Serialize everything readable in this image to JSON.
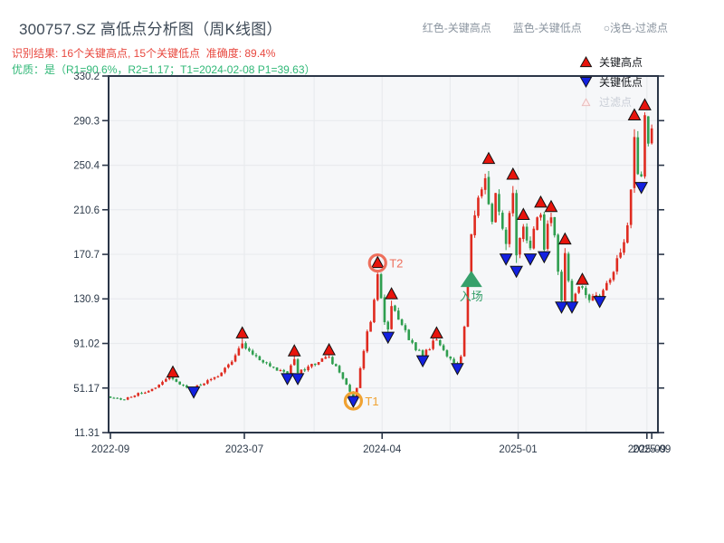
{
  "header": {
    "title": "300757.SZ 高低点分析图（周K线图）",
    "subtitle_result": "识别结果: 16个关键高点, 15个关键低点  准确度: 89.4%",
    "subtitle_quality": "优质：是（R1=90.6%，R2=1.17；T1=2024-02-08 P1=39.63）",
    "note_high": "红色-关键高点",
    "note_low": "蓝色-关键低点",
    "note_filtered": "○浅色-过滤点"
  },
  "legend": {
    "items": [
      {
        "label": "关键高点",
        "marker": "up-triangle-icon",
        "color": "#e8140c"
      },
      {
        "label": "关键低点",
        "marker": "down-triangle-icon",
        "color": "#1321e0"
      },
      {
        "label": "过滤点",
        "marker": "filtered-triangle-icon",
        "color": "#fdeeee",
        "muted": true
      }
    ]
  },
  "colors": {
    "up": "#df2b20",
    "down": "#2f9e4f",
    "key_high": "#e8140c",
    "key_low": "#1321e0",
    "marker_edge": "#111111",
    "entry": "#36a06b",
    "t1": "#f0a232",
    "t2": "#ee6f5c",
    "frame": "#2b3648",
    "grid": "#e9ebee",
    "plot_bg": "#f6f7f9",
    "tick_label": "#2d3a4a",
    "filtered_fill": "#fdeeee",
    "filtered_edge": "#e8b8b8"
  },
  "chart_data": {
    "type": "candlestick",
    "title": "300757.SZ 高低点分析图（周K线图）",
    "weeks": 157,
    "ylim": [
      11.31,
      330.2
    ],
    "y_ticks": [
      {
        "label": "330.2",
        "value": 330.2
      },
      {
        "label": "290.3",
        "value": 290.3
      },
      {
        "label": "250.4",
        "value": 250.4
      },
      {
        "label": "210.6",
        "value": 210.6
      },
      {
        "label": "170.7",
        "value": 170.7
      },
      {
        "label": "130.9",
        "value": 130.9
      },
      {
        "label": "91.02",
        "value": 91.02
      },
      {
        "label": "51.17",
        "value": 51.17
      },
      {
        "label": "11.31",
        "value": 11.31
      }
    ],
    "x_ticks": [
      {
        "label": "2022-09",
        "week": 0
      },
      {
        "label": "2023-07",
        "week": 38.6
      },
      {
        "label": "2024-04",
        "week": 78.3
      },
      {
        "label": "2025-01",
        "week": 117.5
      },
      {
        "label": "2025-09",
        "week": 154.6
      },
      {
        "label": "2025-09",
        "week": 156
      }
    ],
    "grid_weeks": [
      19.3,
      38.6,
      58.7,
      78.3,
      97.9,
      117.5,
      137.1,
      154.6
    ],
    "close_path": [
      [
        0,
        42
      ],
      [
        4,
        41
      ],
      [
        8,
        46
      ],
      [
        12,
        50
      ],
      [
        15,
        57
      ],
      [
        17,
        61
      ],
      [
        18,
        60
      ],
      [
        20,
        54
      ],
      [
        23,
        51
      ],
      [
        24,
        52
      ],
      [
        27,
        56
      ],
      [
        30,
        60
      ],
      [
        33,
        68
      ],
      [
        35,
        76
      ],
      [
        37,
        88
      ],
      [
        38,
        92
      ],
      [
        40,
        84
      ],
      [
        43,
        76
      ],
      [
        46,
        71
      ],
      [
        49,
        66
      ],
      [
        51,
        63
      ],
      [
        52,
        72
      ],
      [
        53,
        78
      ],
      [
        54,
        66
      ],
      [
        56,
        68
      ],
      [
        59,
        73
      ],
      [
        62,
        78
      ],
      [
        63,
        78
      ],
      [
        65,
        70
      ],
      [
        67,
        60
      ],
      [
        69,
        48
      ],
      [
        70,
        42
      ],
      [
        71,
        52
      ],
      [
        72,
        68
      ],
      [
        73,
        85
      ],
      [
        74,
        100
      ],
      [
        75,
        112
      ],
      [
        76,
        132
      ],
      [
        77,
        152
      ],
      [
        78,
        132
      ],
      [
        79,
        112
      ],
      [
        80,
        104
      ],
      [
        81,
        126
      ],
      [
        82,
        120
      ],
      [
        84,
        108
      ],
      [
        86,
        95
      ],
      [
        88,
        86
      ],
      [
        90,
        81
      ],
      [
        92,
        87
      ],
      [
        93,
        92
      ],
      [
        94,
        93
      ],
      [
        96,
        84
      ],
      [
        98,
        77
      ],
      [
        100,
        73
      ],
      [
        101,
        80
      ],
      [
        102,
        105
      ],
      [
        103,
        145
      ],
      [
        104,
        192
      ],
      [
        105,
        205
      ],
      [
        106,
        222
      ],
      [
        107,
        232
      ],
      [
        108,
        242
      ],
      [
        109,
        212
      ],
      [
        110,
        196
      ],
      [
        111,
        225
      ],
      [
        112,
        212
      ],
      [
        113,
        190
      ],
      [
        114,
        178
      ],
      [
        115,
        205
      ],
      [
        116,
        228
      ],
      [
        117,
        172
      ],
      [
        118,
        186
      ],
      [
        119,
        198
      ],
      [
        120,
        184
      ],
      [
        121,
        174
      ],
      [
        122,
        192
      ],
      [
        123,
        202
      ],
      [
        124,
        208
      ],
      [
        125,
        178
      ],
      [
        126,
        196
      ],
      [
        127,
        204
      ],
      [
        128,
        188
      ],
      [
        129,
        158
      ],
      [
        130,
        132
      ],
      [
        131,
        172
      ],
      [
        132,
        148
      ],
      [
        133,
        131
      ],
      [
        134,
        136
      ],
      [
        135,
        140
      ],
      [
        136,
        142
      ],
      [
        137,
        136
      ],
      [
        138,
        131
      ],
      [
        140,
        133
      ],
      [
        141,
        133
      ],
      [
        143,
        144
      ],
      [
        145,
        157
      ],
      [
        147,
        174
      ],
      [
        149,
        196
      ],
      [
        150,
        232
      ],
      [
        151,
        276
      ],
      [
        152,
        244
      ],
      [
        153,
        240
      ],
      [
        154,
        294
      ],
      [
        155,
        268
      ],
      [
        156,
        288
      ]
    ],
    "markers": {
      "key_highs": [
        [
          18,
          65
        ],
        [
          38,
          100
        ],
        [
          53,
          84
        ],
        [
          63,
          85
        ],
        [
          77,
          163
        ],
        [
          81,
          135
        ],
        [
          94,
          100
        ],
        [
          109,
          256
        ],
        [
          116,
          242
        ],
        [
          119,
          206
        ],
        [
          124,
          217
        ],
        [
          127,
          213
        ],
        [
          131,
          184
        ],
        [
          136,
          148
        ],
        [
          151,
          295
        ],
        [
          154,
          304
        ]
      ],
      "key_lows": [
        [
          24,
          48
        ],
        [
          51,
          60
        ],
        [
          54,
          60
        ],
        [
          70,
          39.63
        ],
        [
          80,
          97
        ],
        [
          90,
          76
        ],
        [
          100,
          69
        ],
        [
          114,
          167
        ],
        [
          117,
          156
        ],
        [
          121,
          167
        ],
        [
          125,
          169
        ],
        [
          130,
          124
        ],
        [
          133,
          124
        ],
        [
          141,
          129
        ],
        [
          153,
          231
        ]
      ]
    },
    "annotations": {
      "t1": {
        "label": "T1",
        "week": 70,
        "price": 39.63
      },
      "t2": {
        "label": "T2",
        "week": 77,
        "price": 163
      },
      "entry": {
        "label": "入场",
        "week": 104,
        "price": 148
      }
    }
  }
}
